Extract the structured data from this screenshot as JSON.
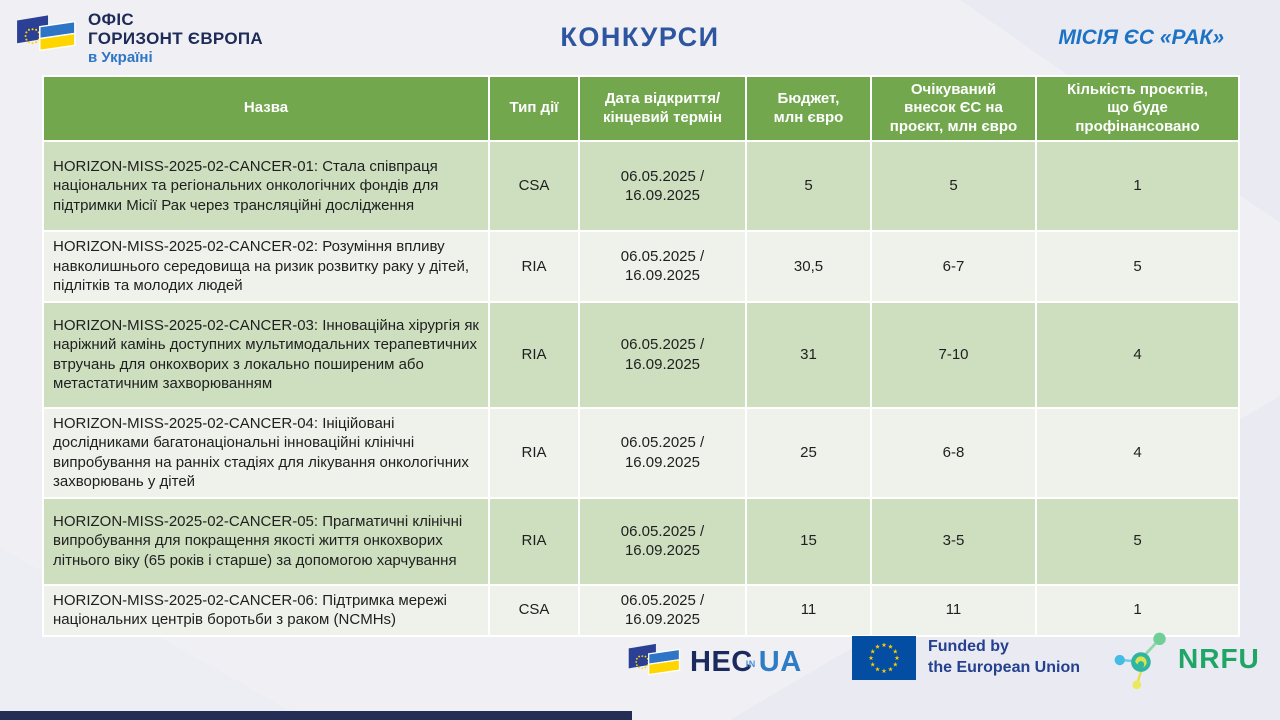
{
  "header": {
    "office_logo": {
      "line1": "ОФІС",
      "line2": "ГОРИЗОНТ ЄВРОПА",
      "line3": "в Україні"
    },
    "title": "КОНКУРСИ",
    "mission": "МІСІЯ ЄС «РАК»"
  },
  "table": {
    "columns": [
      "Назва",
      "Тип дії",
      "Дата відкриття/\nкінцевий термін",
      "Бюджет,\nмлн євро",
      "Очікуваний\nвнесок ЄС на\nпроєкт, млн євро",
      "Кількість проєктів,\nщо буде\nпрофінансовано"
    ],
    "rows": [
      {
        "name": "HORIZON-MISS-2025-02-CANCER-01: Стала співпраця національних та регіональних онкологічних фондів для підтримки Місії Рак через трансляційні дослідження",
        "type": "CSA",
        "date": "06.05.2025 /\n16.09.2025",
        "budget": "5",
        "contribution": "5",
        "projects": "1"
      },
      {
        "name": "HORIZON-MISS-2025-02-CANCER-02: Розуміння впливу навколишнього середовища на ризик розвитку раку у дітей, підлітків та молодих людей",
        "type": "RIA",
        "date": "06.05.2025 /\n16.09.2025",
        "budget": "30,5",
        "contribution": "6-7",
        "projects": "5"
      },
      {
        "name": "HORIZON-MISS-2025-02-CANCER-03: Інноваційна хірургія як наріжний камінь доступних мультимодальних терапевтичних втручань для онкохворих з локально поширеним або метастатичним захворюванням",
        "type": "RIA",
        "date": "06.05.2025 /\n16.09.2025",
        "budget": "31",
        "contribution": "7-10",
        "projects": "4"
      },
      {
        "name": "HORIZON-MISS-2025-02-CANCER-04: Ініційовані дослідниками багатонаціональні інноваційні клінічні випробування на ранніх стадіях для лікування онкологічних захворювань у дітей",
        "type": "RIA",
        "date": "06.05.2025 /\n16.09.2025",
        "budget": "25",
        "contribution": "6-8",
        "projects": "4"
      },
      {
        "name": "HORIZON-MISS-2025-02-CANCER-05: Прагматичні клінічні випробування для покращення якості життя онкохворих літнього віку (65 років і старше) за допомогою харчування",
        "type": "RIA",
        "date": "06.05.2025 /\n16.09.2025",
        "budget": "15",
        "contribution": "3-5",
        "projects": "5"
      },
      {
        "name": "HORIZON-MISS-2025-02-CANCER-06: Підтримка мережі національних центрів боротьби з раком (NCMHs)",
        "type": "CSA",
        "date": "06.05.2025 /\n16.09.2025",
        "budget": "11",
        "contribution": "11",
        "projects": "1"
      }
    ]
  },
  "footer": {
    "heinua": {
      "he": "HE",
      "c": "C",
      "in": "IN",
      "ua": "UA"
    },
    "funded": {
      "line1": "Funded by",
      "line2": "the European Union"
    },
    "nrfu": "NRFU"
  },
  "colors": {
    "header_green": "#72A74E",
    "row_green": "#CEDFC0",
    "row_light": "#EFF2EA",
    "title_blue": "#2D55A0",
    "mission_blue": "#1C72C4",
    "logo_navy": "#1E2B58",
    "logo_blue": "#2E75C6",
    "eu_flag_blue": "#034EA2",
    "star_yellow": "#FFCC00",
    "ua_yellow": "#FFD500",
    "nrfu_green": "#1FA565",
    "bottom_bar_navy": "#242E55"
  }
}
